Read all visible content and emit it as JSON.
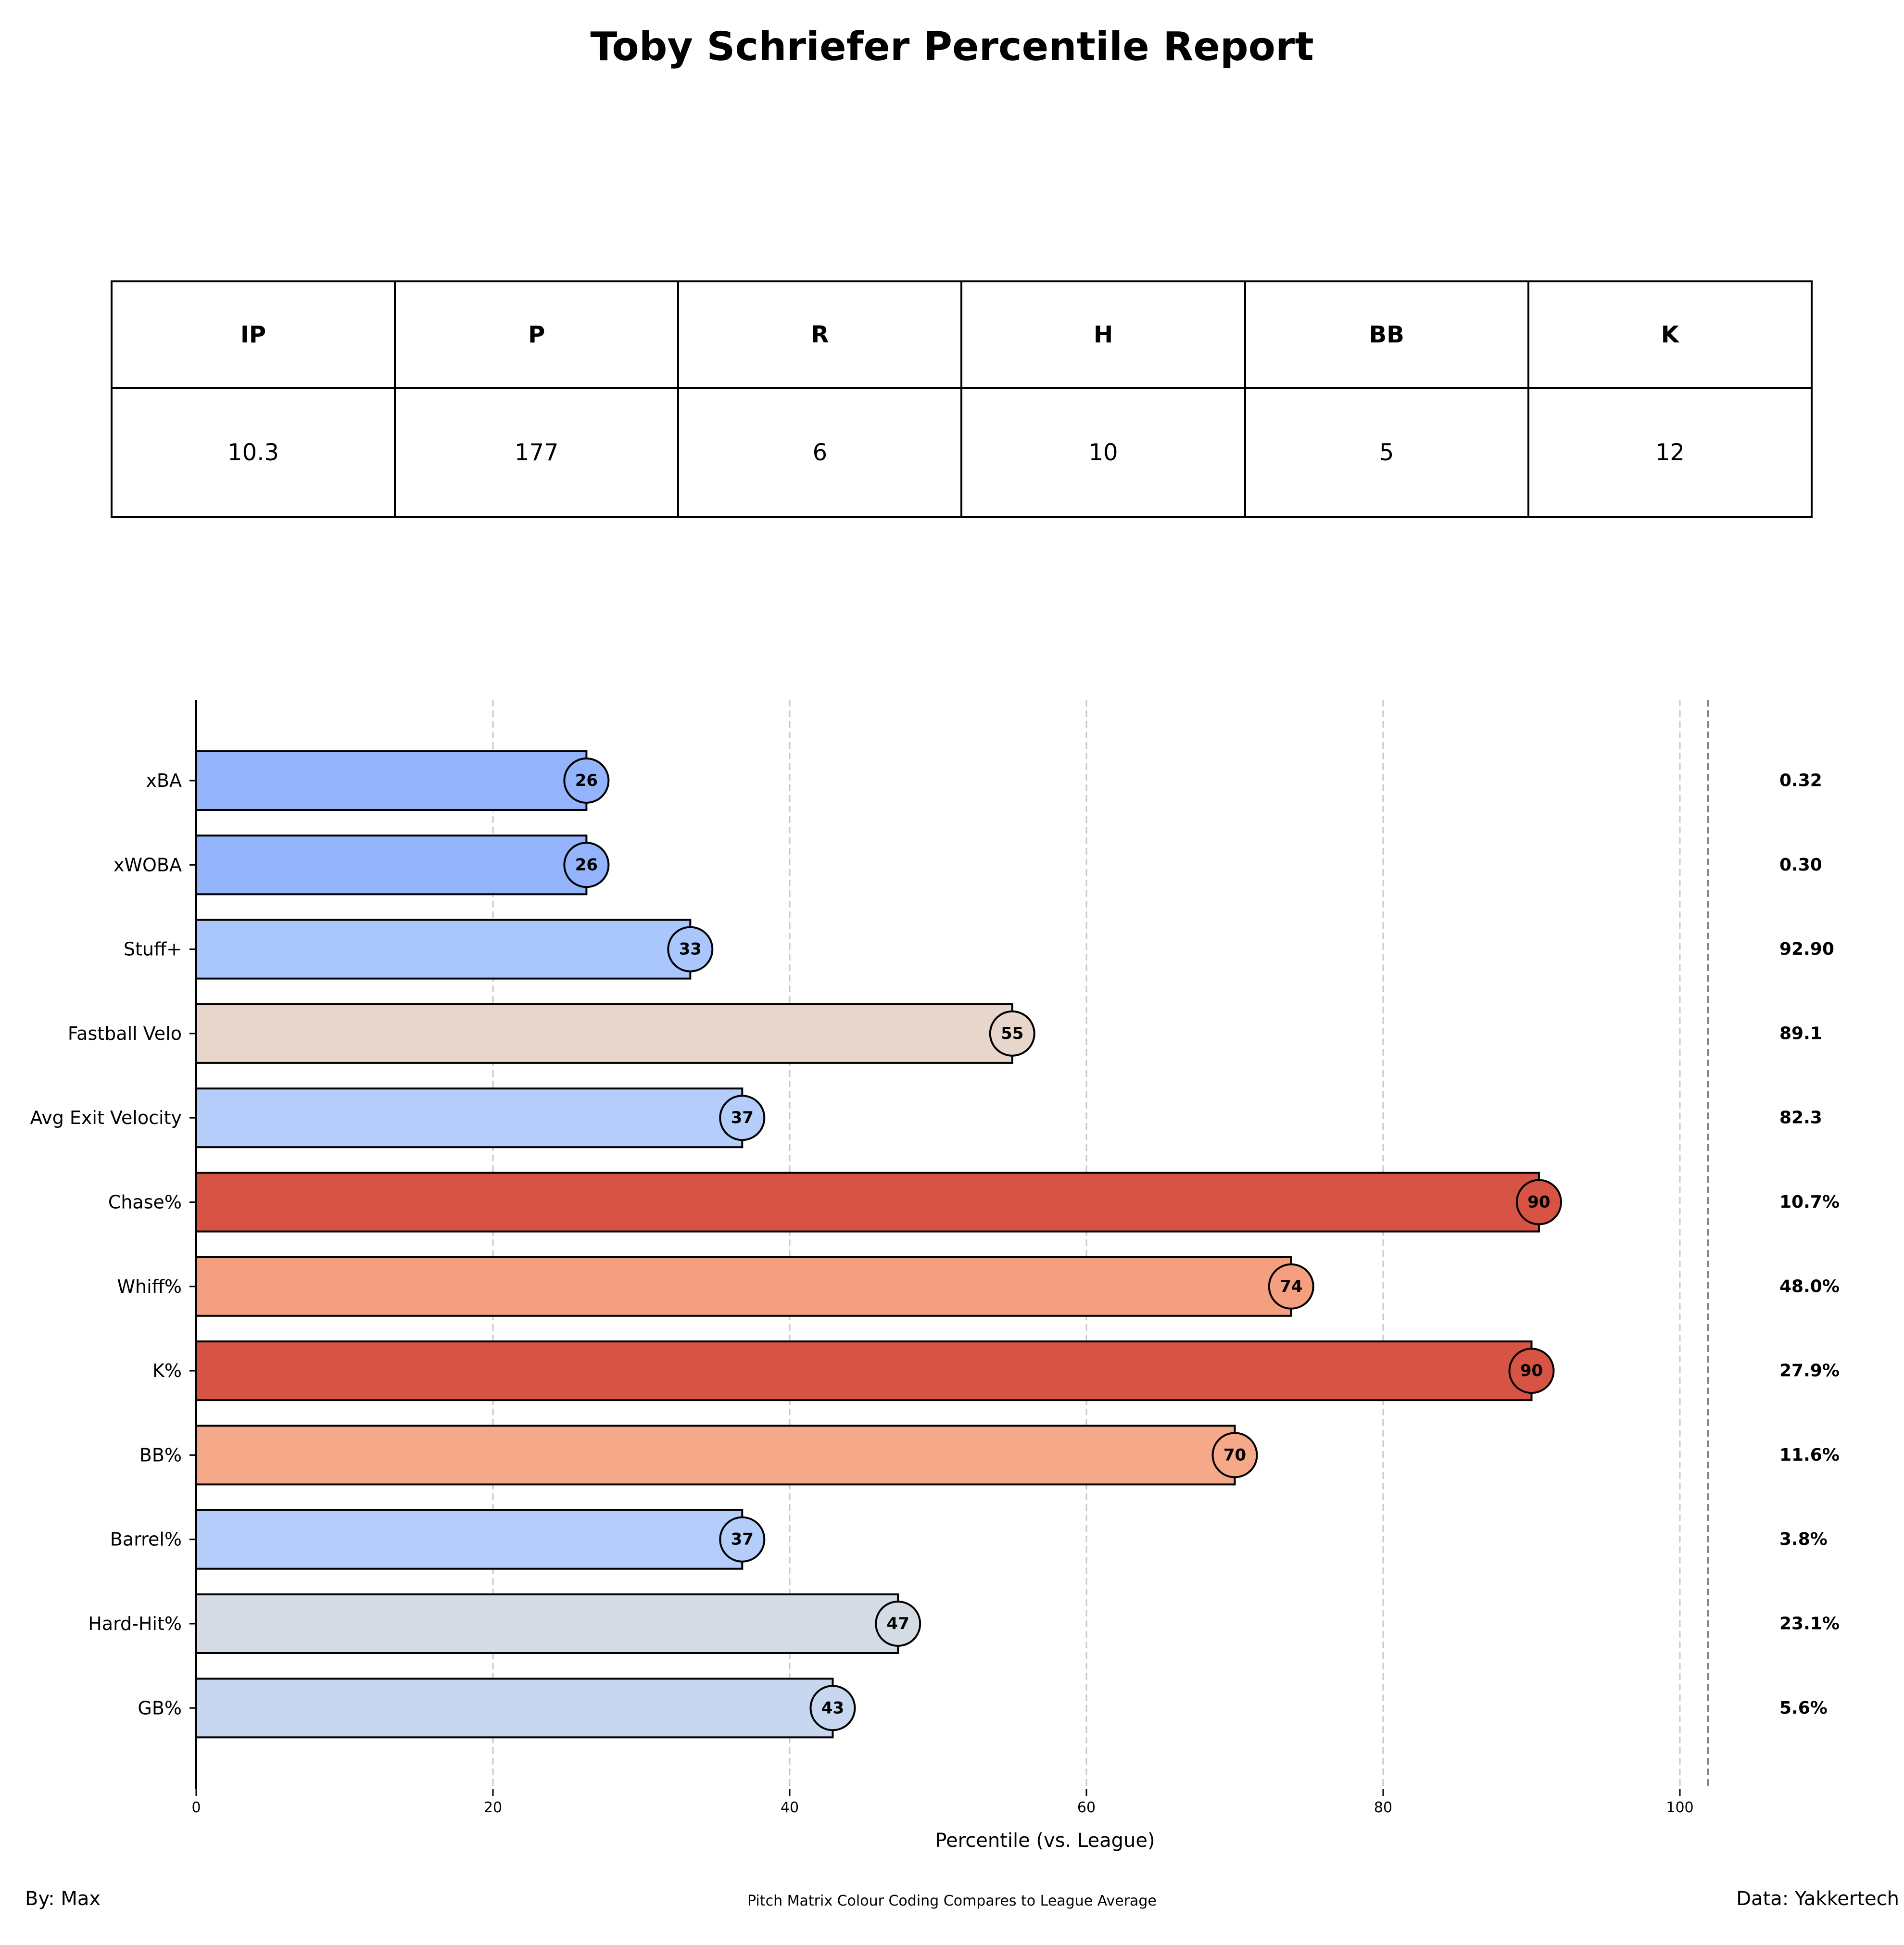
{
  "title": "Toby Schriefer Percentile Report",
  "stats_table": {
    "headers": [
      "IP",
      "P",
      "R",
      "H",
      "BB",
      "K"
    ],
    "values": [
      "10.3",
      "177",
      "6",
      "10",
      "5",
      "12"
    ]
  },
  "chart_data": {
    "type": "bar",
    "orientation": "horizontal",
    "xlabel": "Percentile (vs. League)",
    "xlim": [
      0,
      102
    ],
    "xticks": [
      0,
      20,
      40,
      60,
      80,
      100
    ],
    "grid": "vertical dashed",
    "categories": [
      "xBA",
      "xWOBA",
      "Stuff+",
      "Fastball Velo",
      "Avg Exit Velocity",
      "Chase%",
      "Whiff%",
      "K%",
      "BB%",
      "Barrel%",
      "Hard-Hit%",
      "GB%"
    ],
    "values": [
      26.3,
      26.3,
      33.3,
      55.0,
      36.8,
      90.5,
      73.8,
      90.0,
      70.0,
      36.8,
      47.3,
      42.9
    ],
    "value_labels": [
      "26",
      "26",
      "33",
      "55",
      "37",
      "90",
      "74",
      "90",
      "70",
      "37",
      "47",
      "43"
    ],
    "stat_values": [
      "0.32",
      "0.30",
      "92.90",
      "89.1",
      "82.3",
      "10.7%",
      "48.0%",
      "27.9%",
      "11.6%",
      "3.8%",
      "23.1%",
      "5.6%"
    ],
    "colors": [
      "#93b3fc",
      "#93b3fc",
      "#aac7fd",
      "#e8d6cd",
      "#b5cdfa",
      "#d75445",
      "#f39f80",
      "#d75445",
      "#f5a989",
      "#b5cdfa",
      "#d5dbe5",
      "#c8d7f0"
    ]
  },
  "footer": {
    "left": "By: Max",
    "center": "Pitch Matrix Colour Coding Compares to League Average",
    "right": "Data: Yakkertech"
  }
}
